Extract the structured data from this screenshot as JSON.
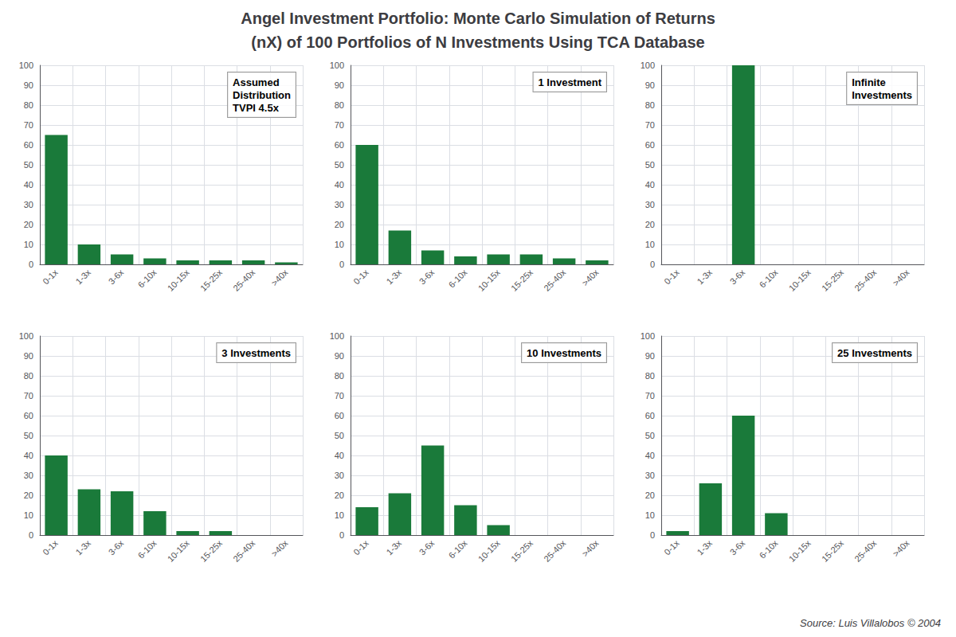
{
  "title": "Angel Investment Portfolio: Monte Carlo Simulation of Returns",
  "subtitle": "(nX) of 100 Portfolios of N Investments Using TCA Database",
  "annotations": [
    "Source: Luis Villalobos © 2004"
  ],
  "chart_data": [
    {
      "type": "bar",
      "categories": [
        "0-1x",
        "1-3x",
        "3-6x",
        "6-10x",
        "10-15x",
        "15-25x",
        "25-40x",
        ">40x"
      ],
      "values": [
        65,
        10,
        5,
        3,
        2,
        2,
        2,
        1
      ],
      "color": "#1a7a3a",
      "ylim": [
        0,
        100
      ],
      "yticks": [
        0,
        10,
        20,
        30,
        40,
        50,
        60,
        70,
        80,
        90,
        100
      ],
      "grid": true,
      "annotations": [
        "Assumed\nDistribution\nTVPI 4.5x"
      ]
    },
    {
      "type": "bar",
      "categories": [
        "0-1x",
        "1-3x",
        "3-6x",
        "6-10x",
        "10-15x",
        "15-25x",
        "25-40x",
        ">40x"
      ],
      "values": [
        60,
        17,
        7,
        4,
        5,
        5,
        3,
        2
      ],
      "color": "#1a7a3a",
      "ylim": [
        0,
        100
      ],
      "yticks": [
        0,
        10,
        20,
        30,
        40,
        50,
        60,
        70,
        80,
        90,
        100
      ],
      "grid": true,
      "annotations": [
        "1 Investment"
      ]
    },
    {
      "type": "bar",
      "categories": [
        "0-1x",
        "1-3x",
        "3-6x",
        "6-10x",
        "10-15x",
        "15-25x",
        "25-40x",
        ">40x"
      ],
      "values": [
        0,
        0,
        100,
        0,
        0,
        0,
        0,
        0
      ],
      "color": "#1a7a3a",
      "ylim": [
        0,
        100
      ],
      "yticks": [
        0,
        10,
        20,
        30,
        40,
        50,
        60,
        70,
        80,
        90,
        100
      ],
      "grid": true,
      "annotations": [
        "Infinite\nInvestments"
      ]
    },
    {
      "type": "bar",
      "categories": [
        "0-1x",
        "1-3x",
        "3-6x",
        "6-10x",
        "10-15x",
        "15-25x",
        "25-40x",
        ">40x"
      ],
      "values": [
        40,
        23,
        22,
        12,
        2,
        2,
        0,
        0
      ],
      "color": "#1a7a3a",
      "ylim": [
        0,
        100
      ],
      "yticks": [
        0,
        10,
        20,
        30,
        40,
        50,
        60,
        70,
        80,
        90,
        100
      ],
      "grid": true,
      "annotations": [
        "3 Investments"
      ]
    },
    {
      "type": "bar",
      "categories": [
        "0-1x",
        "1-3x",
        "3-6x",
        "6-10x",
        "10-15x",
        "15-25x",
        "25-40x",
        ">40x"
      ],
      "values": [
        14,
        21,
        45,
        15,
        5,
        0,
        0,
        0
      ],
      "color": "#1a7a3a",
      "ylim": [
        0,
        100
      ],
      "yticks": [
        0,
        10,
        20,
        30,
        40,
        50,
        60,
        70,
        80,
        90,
        100
      ],
      "grid": true,
      "annotations": [
        "10 Investments"
      ]
    },
    {
      "type": "bar",
      "categories": [
        "0-1x",
        "1-3x",
        "3-6x",
        "6-10x",
        "10-15x",
        "15-25x",
        "25-40x",
        ">40x"
      ],
      "values": [
        2,
        26,
        60,
        11,
        0,
        0,
        0,
        0
      ],
      "color": "#1a7a3a",
      "ylim": [
        0,
        100
      ],
      "yticks": [
        0,
        10,
        20,
        30,
        40,
        50,
        60,
        70,
        80,
        90,
        100
      ],
      "grid": true,
      "annotations": [
        "25 Investments"
      ]
    }
  ]
}
